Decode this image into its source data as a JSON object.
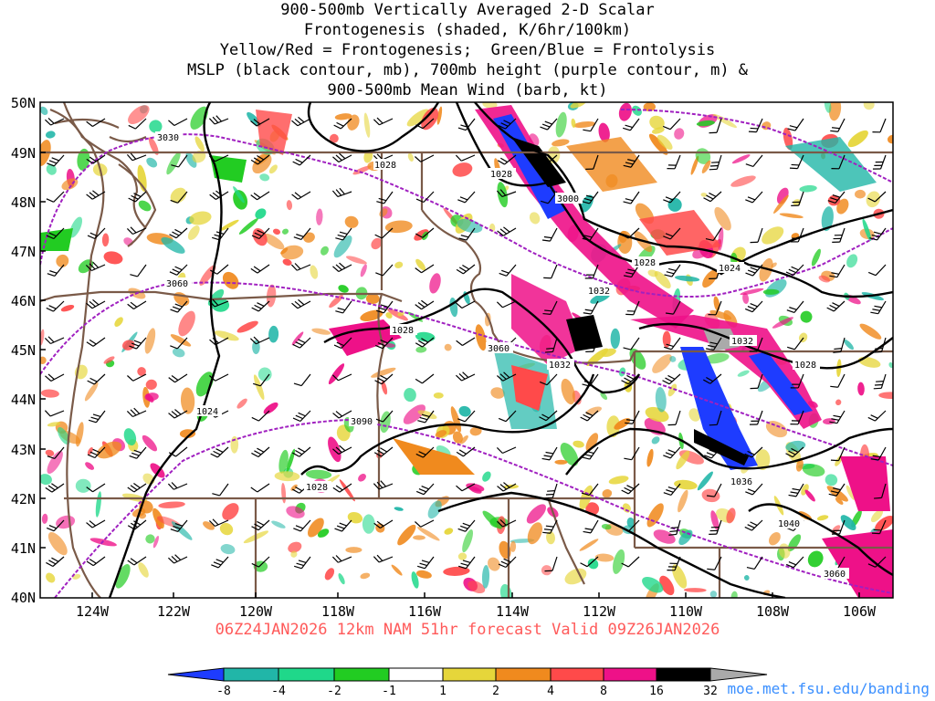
{
  "title": {
    "line1": "900-500mb Vertically Averaged 2-D Scalar",
    "line2": "Frontogenesis (shaded, K/6hr/100km)",
    "line3": "Yellow/Red = Frontogenesis;  Green/Blue = Frontolysis",
    "line4": "MSLP (black contour, mb), 700mb height (purple contour, m) &",
    "line5": "900-500mb Mean Wind (barb, kt)"
  },
  "valid_line": "06Z24JAN2026 12km NAM 51hr forecast Valid 09Z26JAN2026",
  "credit": "moe.met.fsu.edu/banding",
  "map": {
    "lat_labels": [
      "50N",
      "49N",
      "48N",
      "47N",
      "46N",
      "45N",
      "44N",
      "43N",
      "42N",
      "41N",
      "40N"
    ],
    "lon_labels": [
      "124W",
      "122W",
      "120W",
      "118W",
      "116W",
      "114W",
      "112W",
      "110W",
      "108W",
      "106W"
    ],
    "mslp_labels": [
      "1028",
      "1028",
      "1024",
      "1028",
      "1032",
      "1028",
      "1032",
      "1032",
      "1028",
      "1024",
      "1028",
      "1036",
      "1040"
    ],
    "height_labels": [
      "3030",
      "3000",
      "3060",
      "3060",
      "3090",
      "3060"
    ]
  },
  "colorbar": {
    "labels": [
      "-8",
      "-4",
      "-2",
      "-1",
      "1",
      "2",
      "4",
      "8",
      "16",
      "32"
    ],
    "colors": [
      "#1e3cff",
      "#21b6a8",
      "#1fd88a",
      "#22cc22",
      "#ffffff",
      "#e6d63a",
      "#f08a1e",
      "#ff4a4a",
      "#ee1188",
      "#000000",
      "#aaaaaa"
    ]
  },
  "colors": {
    "border": "#7a5a48",
    "mslp": "#000000",
    "height": "#a020c0"
  }
}
